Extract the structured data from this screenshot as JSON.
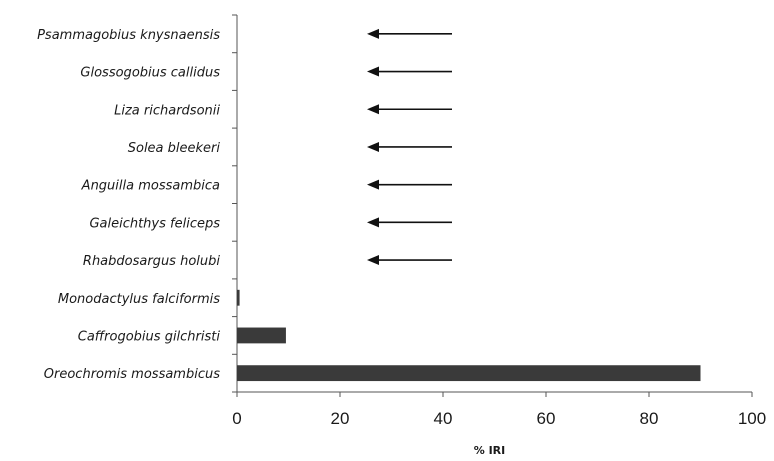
{
  "chart_data": {
    "type": "bar",
    "orientation": "horizontal",
    "categories": [
      "Psammagobius knysnaensis",
      "Glossogobius callidus",
      "Liza richardsonii",
      "Solea bleekeri",
      "Anguilla mossambica",
      "Galeichthys feliceps",
      "Rhabdosargus holubi",
      "Monodactylus falciformis",
      "Caffrogobius gilchristi",
      "Oreochromis mossambicus"
    ],
    "values": [
      0,
      0,
      0,
      0,
      0,
      0,
      0,
      0.5,
      9.5,
      90
    ],
    "annotated_with_arrow": [
      true,
      true,
      true,
      true,
      true,
      true,
      true,
      false,
      false,
      false
    ],
    "xlabel": "% IRI",
    "ylabel": "",
    "xlim": [
      0,
      100
    ],
    "xticks": [
      0,
      20,
      40,
      60,
      80,
      100
    ],
    "grid": false,
    "legend": "none",
    "colors": {
      "bar": "#3a3a3a",
      "axis": "#555555",
      "arrow": "#111111"
    }
  }
}
